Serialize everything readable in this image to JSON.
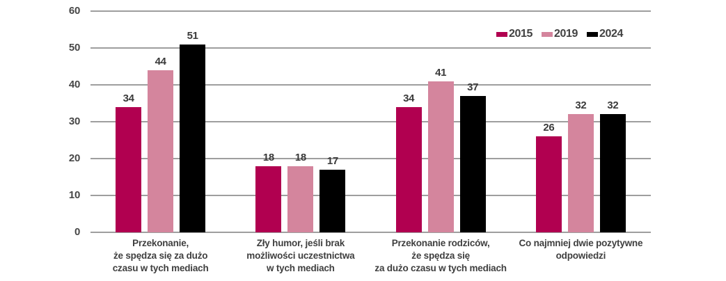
{
  "chart_data": {
    "type": "bar",
    "title": "",
    "xlabel": "",
    "ylabel": "",
    "ylim": [
      0,
      60
    ],
    "yticks": [
      0,
      10,
      20,
      30,
      40,
      50,
      60
    ],
    "grid": true,
    "legend_position": "top-right",
    "categories": [
      "Przekonanie, że spędza się za dużo czasu w tych mediach",
      "Zły humor, jeśli brak możliwości uczestnictwa w tych mediach",
      "Przekonanie rodziców, że spędza się za dużo czasu w tych mediach",
      "Co najmniej dwie pozytywne odpowiedzi"
    ],
    "category_lines": [
      [
        "Przekonanie,",
        "że spędza się za dużo",
        "czasu w tych mediach"
      ],
      [
        "Zły humor, jeśli brak",
        "możliwości uczestnictwa",
        "w tych mediach"
      ],
      [
        "Przekonanie rodziców,",
        "że spędza się",
        "za dużo czasu w tych mediach"
      ],
      [
        "Co najmniej dwie pozytywne",
        "odpowiedzi"
      ]
    ],
    "series": [
      {
        "name": "2015",
        "color": "#b10050",
        "values": [
          34,
          18,
          34,
          26
        ]
      },
      {
        "name": "2019",
        "color": "#d4859d",
        "values": [
          44,
          18,
          41,
          32
        ]
      },
      {
        "name": "2024",
        "color": "#000000",
        "values": [
          51,
          17,
          37,
          32
        ]
      }
    ]
  },
  "colors": {
    "grid": "#9e9e9e",
    "tick_text": "#474747",
    "value_text": "#3a3a3a",
    "category_text": "#3f3f3f",
    "legend_text": "#414141",
    "background": "#ffffff"
  }
}
